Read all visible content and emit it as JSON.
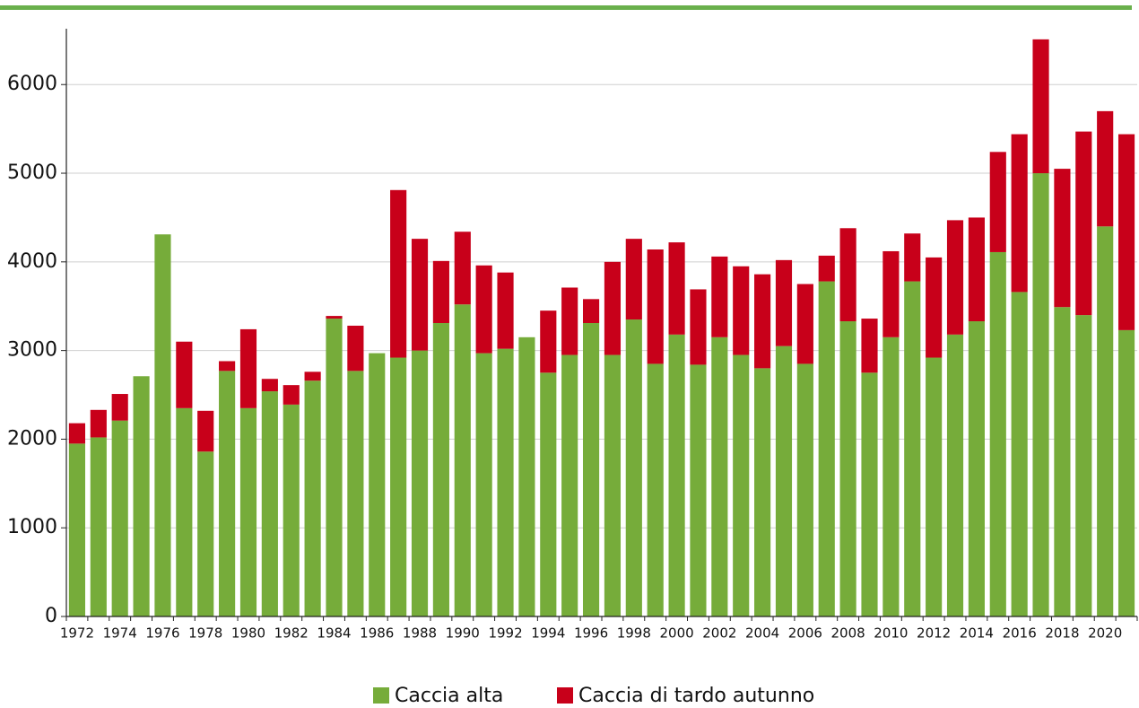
{
  "chart_data": {
    "type": "stacked_bar",
    "categories": [
      "1972",
      null,
      "1974",
      null,
      "1976",
      null,
      "1978",
      null,
      "1980",
      null,
      "1982",
      null,
      "1984",
      null,
      "1986",
      null,
      "1988",
      null,
      "1990",
      null,
      "1992",
      null,
      "1994",
      null,
      "1996",
      null,
      "1998",
      null,
      "2000",
      null,
      "2002",
      null,
      "2004",
      null,
      "2006",
      null,
      "2008",
      null,
      "2010",
      null,
      "2012",
      null,
      "2014",
      null,
      "2016",
      null,
      "2018",
      null,
      "2020",
      null
    ],
    "series": [
      {
        "name": "Caccia alta",
        "color": "#76ac3a",
        "values": [
          1950,
          2020,
          2210,
          2710,
          4310,
          2350,
          1860,
          2770,
          2350,
          2540,
          2390,
          2660,
          3360,
          2770,
          2970,
          2920,
          3000,
          3310,
          3520,
          2970,
          3020,
          3150,
          2750,
          2950,
          3310,
          2950,
          3350,
          2850,
          3180,
          2840,
          3150,
          2950,
          2800,
          3050,
          2850,
          3780,
          3330,
          2750,
          3150,
          3780,
          2920,
          3180,
          3330,
          4110,
          3660,
          5000,
          3490,
          3400,
          4400,
          3230
        ]
      },
      {
        "name": "Caccia di tardo autunno",
        "color": "#c8001a",
        "values": [
          230,
          310,
          300,
          0,
          0,
          750,
          460,
          110,
          890,
          140,
          220,
          100,
          30,
          510,
          0,
          1890,
          1260,
          700,
          820,
          990,
          860,
          0,
          700,
          760,
          270,
          1050,
          910,
          1290,
          1040,
          850,
          910,
          1000,
          1060,
          970,
          900,
          290,
          1050,
          610,
          970,
          540,
          1130,
          1290,
          1170,
          1130,
          1780,
          1510,
          1560,
          2070,
          1300,
          2210
        ]
      }
    ],
    "ylim": [
      0,
      6630
    ],
    "yticks": [
      0,
      1000,
      2000,
      3000,
      4000,
      5000,
      6000
    ],
    "grid": true
  }
}
